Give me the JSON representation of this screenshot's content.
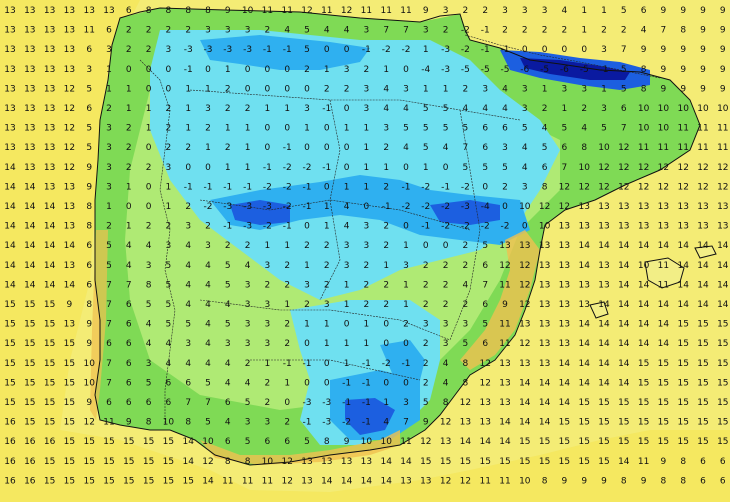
{
  "map": {
    "type": "temperature-grid-map",
    "region": "Iberian Peninsula",
    "colors": {
      "sea_warm": "#f5e860",
      "sea_mid": "#f2ee86",
      "land_green": "#7fda55",
      "land_light_green": "#b7ec7a",
      "land_cyan": "#6fe0f0",
      "land_light_blue": "#2fb0f0",
      "land_blue": "#1c5fe0",
      "land_dark_blue": "#0a1aa0",
      "orange_coast": "#f0c050"
    },
    "grid": {
      "cols": 37,
      "rows": 25,
      "rows_values": [
        [
          13,
          13,
          13,
          13,
          13,
          13,
          6,
          8,
          8,
          8,
          8,
          9,
          10,
          11,
          11,
          12,
          11,
          12,
          11,
          11,
          11,
          9,
          3,
          2,
          2,
          3,
          3,
          3,
          4,
          1,
          1,
          5,
          6,
          9,
          9,
          9,
          9
        ],
        [
          13,
          13,
          13,
          13,
          11,
          6,
          2,
          2,
          2,
          2,
          3,
          3,
          3,
          2,
          4,
          5,
          4,
          4,
          3,
          7,
          7,
          3,
          2,
          -2,
          -1,
          2,
          2,
          2,
          2,
          1,
          2,
          2,
          4,
          7,
          8,
          9,
          9
        ],
        [
          13,
          13,
          13,
          13,
          6,
          3,
          2,
          2,
          3,
          -3,
          -3,
          -3,
          -3,
          -1,
          -1,
          5,
          0,
          0,
          -1,
          -2,
          -2,
          1,
          -3,
          -2,
          -1,
          -1,
          0,
          0,
          0,
          0,
          3,
          7,
          9,
          9,
          9,
          9,
          9
        ],
        [
          13,
          13,
          13,
          13,
          3,
          1,
          0,
          0,
          0,
          -1,
          0,
          1,
          0,
          0,
          0,
          2,
          1,
          3,
          2,
          1,
          0,
          -4,
          -3,
          -5,
          -5,
          -5,
          -6,
          -5,
          -6,
          -5,
          -1,
          5,
          8,
          9,
          9,
          9,
          9
        ],
        [
          13,
          13,
          13,
          12,
          5,
          1,
          1,
          0,
          0,
          1,
          1,
          2,
          0,
          0,
          0,
          0,
          2,
          2,
          3,
          4,
          3,
          1,
          1,
          2,
          3,
          4,
          3,
          1,
          3,
          3,
          1,
          5,
          8,
          9,
          9,
          9,
          9
        ],
        [
          13,
          13,
          13,
          12,
          6,
          2,
          1,
          1,
          2,
          1,
          3,
          2,
          2,
          1,
          1,
          3,
          -1,
          0,
          3,
          4,
          4,
          5,
          5,
          4,
          4,
          4,
          3,
          2,
          1,
          2,
          3,
          6,
          10,
          10,
          10,
          10,
          10
        ],
        [
          13,
          13,
          13,
          12,
          5,
          3,
          2,
          1,
          2,
          1,
          2,
          1,
          1,
          0,
          0,
          1,
          0,
          1,
          1,
          3,
          5,
          5,
          5,
          5,
          6,
          6,
          5,
          4,
          5,
          4,
          5,
          7,
          10,
          10,
          11,
          11,
          11
        ],
        [
          13,
          13,
          13,
          12,
          5,
          3,
          2,
          0,
          2,
          2,
          1,
          2,
          1,
          0,
          -1,
          0,
          0,
          0,
          1,
          2,
          4,
          5,
          4,
          7,
          6,
          3,
          4,
          5,
          6,
          8,
          10,
          12,
          11,
          11,
          11,
          11,
          11
        ],
        [
          14,
          13,
          13,
          12,
          9,
          3,
          2,
          2,
          3,
          0,
          0,
          1,
          1,
          -1,
          -2,
          -2,
          -1,
          0,
          1,
          1,
          0,
          1,
          0,
          5,
          5,
          5,
          4,
          6,
          7,
          10,
          12,
          12,
          12,
          12,
          12,
          12,
          12
        ],
        [
          14,
          14,
          13,
          13,
          9,
          3,
          1,
          0,
          1,
          -1,
          -1,
          -1,
          -1,
          -2,
          -2,
          -1,
          0,
          1,
          1,
          2,
          -1,
          -2,
          -1,
          -2,
          0,
          2,
          3,
          8,
          12,
          12,
          12,
          12,
          12,
          12,
          12,
          12,
          12
        ],
        [
          14,
          14,
          14,
          13,
          8,
          1,
          0,
          0,
          1,
          2,
          -2,
          -3,
          -3,
          -3,
          -2,
          -1,
          1,
          4,
          0,
          -1,
          -2,
          -2,
          -2,
          -3,
          -4,
          0,
          10,
          12,
          12,
          13,
          13,
          13,
          13,
          13,
          13,
          13,
          13
        ],
        [
          14,
          14,
          14,
          13,
          8,
          2,
          1,
          2,
          2,
          3,
          2,
          -1,
          -3,
          -2,
          -1,
          0,
          1,
          4,
          3,
          2,
          0,
          -1,
          -2,
          -2,
          -2,
          -2,
          0,
          10,
          13,
          13,
          13,
          13,
          13,
          13,
          13,
          13,
          13
        ],
        [
          14,
          14,
          14,
          14,
          6,
          5,
          4,
          4,
          3,
          4,
          3,
          2,
          2,
          1,
          1,
          2,
          2,
          3,
          3,
          2,
          1,
          0,
          0,
          2,
          5,
          13,
          13,
          13,
          13,
          14,
          14,
          14,
          14,
          14,
          14,
          14,
          14
        ],
        [
          14,
          14,
          14,
          13,
          6,
          5,
          4,
          3,
          5,
          4,
          4,
          5,
          4,
          3,
          2,
          1,
          2,
          3,
          2,
          1,
          3,
          2,
          2,
          2,
          6,
          12,
          12,
          13,
          13,
          14,
          13,
          14,
          10,
          11,
          14,
          14,
          14
        ],
        [
          14,
          14,
          14,
          14,
          6,
          7,
          7,
          8,
          5,
          4,
          4,
          5,
          3,
          2,
          2,
          3,
          2,
          1,
          2,
          2,
          1,
          2,
          2,
          4,
          7,
          11,
          12,
          13,
          13,
          13,
          13,
          14,
          14,
          11,
          14,
          14,
          14
        ],
        [
          15,
          15,
          15,
          9,
          8,
          7,
          6,
          5,
          5,
          4,
          4,
          4,
          3,
          3,
          1,
          2,
          3,
          1,
          2,
          2,
          1,
          2,
          2,
          2,
          6,
          9,
          12,
          13,
          13,
          13,
          14,
          14,
          14,
          14,
          14,
          14,
          14
        ],
        [
          15,
          15,
          15,
          13,
          9,
          7,
          6,
          4,
          5,
          5,
          4,
          5,
          3,
          3,
          2,
          1,
          1,
          0,
          1,
          0,
          2,
          3,
          3,
          3,
          5,
          11,
          13,
          13,
          13,
          14,
          14,
          14,
          14,
          14,
          15,
          15,
          15
        ],
        [
          15,
          15,
          15,
          15,
          9,
          6,
          6,
          4,
          4,
          3,
          4,
          3,
          3,
          3,
          2,
          0,
          1,
          1,
          1,
          0,
          0,
          2,
          3,
          5,
          6,
          11,
          12,
          13,
          13,
          14,
          14,
          14,
          14,
          14,
          15,
          15,
          15
        ],
        [
          15,
          15,
          15,
          15,
          10,
          7,
          6,
          3,
          4,
          4,
          4,
          4,
          2,
          1,
          -1,
          -1,
          0,
          1,
          -1,
          -2,
          -1,
          2,
          4,
          8,
          12,
          13,
          13,
          13,
          14,
          14,
          14,
          14,
          15,
          15,
          15,
          15,
          15
        ],
        [
          15,
          15,
          15,
          15,
          10,
          7,
          6,
          5,
          6,
          6,
          5,
          4,
          4,
          2,
          1,
          0,
          0,
          -1,
          -1,
          0,
          0,
          2,
          4,
          8,
          12,
          13,
          14,
          14,
          14,
          14,
          14,
          14,
          15,
          15,
          15,
          15,
          15
        ],
        [
          15,
          15,
          15,
          15,
          9,
          6,
          6,
          6,
          6,
          7,
          7,
          6,
          5,
          2,
          0,
          -3,
          -3,
          -1,
          -1,
          1,
          3,
          5,
          8,
          12,
          13,
          13,
          14,
          14,
          14,
          15,
          15,
          15,
          15,
          15,
          15,
          15,
          15
        ],
        [
          16,
          15,
          15,
          15,
          12,
          11,
          9,
          8,
          10,
          8,
          5,
          4,
          3,
          3,
          2,
          -1,
          -3,
          -2,
          -1,
          4,
          7,
          9,
          12,
          13,
          13,
          14,
          14,
          14,
          15,
          15,
          15,
          15,
          15,
          15,
          15,
          15,
          15
        ],
        [
          16,
          16,
          16,
          15,
          15,
          15,
          15,
          15,
          15,
          14,
          10,
          6,
          5,
          6,
          6,
          5,
          8,
          9,
          10,
          10,
          11,
          12,
          13,
          14,
          14,
          14,
          15,
          15,
          15,
          15,
          15,
          15,
          15,
          15,
          15,
          15,
          15
        ],
        [
          16,
          16,
          15,
          15,
          15,
          15,
          15,
          15,
          15,
          14,
          12,
          8,
          8,
          10,
          12,
          13,
          13,
          13,
          13,
          14,
          14,
          15,
          15,
          15,
          15,
          15,
          15,
          15,
          15,
          15,
          15,
          14,
          11,
          9,
          8,
          6,
          6
        ],
        [
          16,
          16,
          15,
          15,
          15,
          15,
          15,
          15,
          15,
          15,
          14,
          11,
          11,
          11,
          12,
          13,
          14,
          14,
          14,
          14,
          13,
          13,
          12,
          12,
          11,
          11,
          10,
          8,
          9,
          9,
          9,
          8,
          9,
          8,
          8,
          6,
          6
        ]
      ]
    }
  }
}
